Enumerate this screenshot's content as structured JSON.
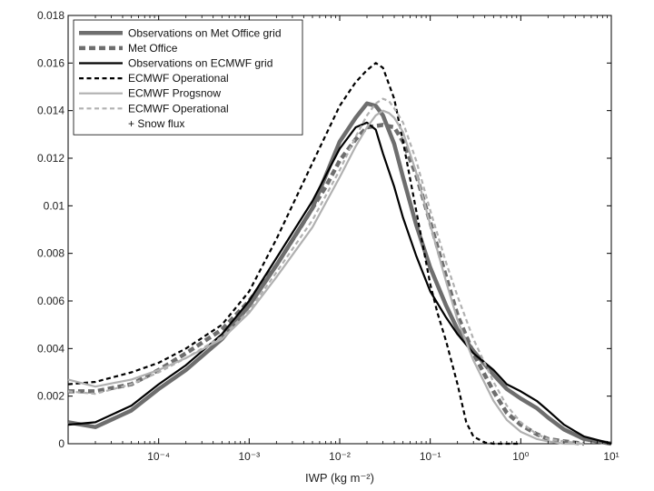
{
  "chart_data": {
    "type": "line",
    "title": "",
    "xlabel": "IWP (kg m⁻²)",
    "ylabel": "",
    "x_scale": "log",
    "xlim": [
      1e-05,
      10
    ],
    "ylim": [
      0,
      0.018
    ],
    "x_ticks": [
      {
        "value": 0.0001,
        "label": "10⁻⁴"
      },
      {
        "value": 0.001,
        "label": "10⁻³"
      },
      {
        "value": 0.01,
        "label": "10⁻²"
      },
      {
        "value": 0.1,
        "label": "10⁻¹"
      },
      {
        "value": 1,
        "label": "10⁰"
      },
      {
        "value": 10,
        "label": "10¹"
      }
    ],
    "y_ticks": [
      {
        "value": 0,
        "label": "0"
      },
      {
        "value": 0.002,
        "label": "0.002"
      },
      {
        "value": 0.004,
        "label": "0.004"
      },
      {
        "value": 0.006,
        "label": "0.006"
      },
      {
        "value": 0.008,
        "label": "0.008"
      },
      {
        "value": 0.01,
        "label": "0.01"
      },
      {
        "value": 0.012,
        "label": "0.012"
      },
      {
        "value": 0.014,
        "label": "0.014"
      },
      {
        "value": 0.016,
        "label": "0.016"
      },
      {
        "value": 0.018,
        "label": "0.018"
      }
    ],
    "legend_position": "top-left",
    "series": [
      {
        "name": "Observations on Met Office grid",
        "color": "#6e6e6e",
        "style": "solid",
        "weight": "thick",
        "x": [
          1e-05,
          2e-05,
          5e-05,
          0.0001,
          0.0002,
          0.0005,
          0.001,
          0.002,
          0.005,
          0.01,
          0.015,
          0.02,
          0.025,
          0.03,
          0.04,
          0.05,
          0.07,
          0.1,
          0.15,
          0.2,
          0.3,
          0.5,
          0.7,
          1,
          1.5,
          2,
          3,
          5,
          10
        ],
        "values": [
          0.0009,
          0.0007,
          0.0014,
          0.0023,
          0.0031,
          0.0044,
          0.0058,
          0.0075,
          0.0099,
          0.0127,
          0.0137,
          0.0143,
          0.0142,
          0.0138,
          0.0126,
          0.0112,
          0.0092,
          0.0074,
          0.0058,
          0.0048,
          0.0039,
          0.0029,
          0.0023,
          0.0019,
          0.0015,
          0.0011,
          0.0006,
          0.0002,
          0.0
        ]
      },
      {
        "name": "Met Office",
        "color": "#6e6e6e",
        "style": "dash",
        "weight": "thick",
        "x": [
          1e-05,
          2e-05,
          5e-05,
          0.0001,
          0.0002,
          0.0005,
          0.001,
          0.002,
          0.004,
          0.007,
          0.01,
          0.015,
          0.02,
          0.03,
          0.04,
          0.05,
          0.07,
          0.1,
          0.15,
          0.2,
          0.3,
          0.5,
          0.7,
          1,
          1.5,
          2,
          3,
          5
        ],
        "values": [
          0.0022,
          0.0022,
          0.0025,
          0.0031,
          0.0038,
          0.0048,
          0.006,
          0.0075,
          0.0093,
          0.0108,
          0.0119,
          0.0128,
          0.0133,
          0.0134,
          0.0133,
          0.0127,
          0.0113,
          0.0093,
          0.007,
          0.0054,
          0.0038,
          0.0022,
          0.0013,
          0.0008,
          0.0004,
          0.0002,
          0.0001,
          0.0
        ]
      },
      {
        "name": "Observations on ECMWF grid",
        "color": "#000000",
        "style": "solid",
        "weight": "medium",
        "x": [
          1e-05,
          2e-05,
          5e-05,
          0.0001,
          0.0002,
          0.0005,
          0.001,
          0.002,
          0.005,
          0.01,
          0.015,
          0.02,
          0.025,
          0.03,
          0.04,
          0.05,
          0.07,
          0.1,
          0.15,
          0.2,
          0.3,
          0.5,
          0.7,
          1,
          1.5,
          2,
          3,
          5,
          10
        ],
        "values": [
          0.0008,
          0.0009,
          0.0016,
          0.0025,
          0.0033,
          0.0046,
          0.006,
          0.0078,
          0.0102,
          0.0124,
          0.0133,
          0.0135,
          0.0132,
          0.0122,
          0.0108,
          0.0095,
          0.0079,
          0.0064,
          0.0053,
          0.0046,
          0.0038,
          0.0031,
          0.0025,
          0.0022,
          0.0018,
          0.0014,
          0.0008,
          0.0003,
          0.0
        ]
      },
      {
        "name": "ECMWF Operational",
        "color": "#000000",
        "style": "dash",
        "weight": "medium",
        "x": [
          1e-05,
          2e-05,
          5e-05,
          0.0001,
          0.0002,
          0.0005,
          0.001,
          0.002,
          0.005,
          0.01,
          0.015,
          0.02,
          0.025,
          0.03,
          0.04,
          0.05,
          0.07,
          0.1,
          0.12,
          0.15,
          0.2,
          0.25,
          0.3,
          0.4,
          0.5,
          0.7,
          1
        ],
        "values": [
          0.0025,
          0.0026,
          0.003,
          0.0034,
          0.004,
          0.005,
          0.0064,
          0.0086,
          0.0118,
          0.0142,
          0.0152,
          0.0157,
          0.016,
          0.0158,
          0.0145,
          0.0127,
          0.0098,
          0.0067,
          0.0055,
          0.0043,
          0.0025,
          0.0009,
          0.0003,
          5e-05,
          0.0,
          0.0,
          0.0
        ]
      },
      {
        "name": "ECMWF Progsnow",
        "color": "#b0b0b0",
        "style": "solid",
        "weight": "medium",
        "x": [
          1e-05,
          2e-05,
          5e-05,
          0.0001,
          0.0002,
          0.0005,
          0.001,
          0.002,
          0.005,
          0.01,
          0.015,
          0.02,
          0.025,
          0.03,
          0.035,
          0.04,
          0.05,
          0.07,
          0.1,
          0.15,
          0.2,
          0.3,
          0.5,
          0.7,
          1,
          1.5,
          2,
          3,
          5
        ],
        "values": [
          0.0027,
          0.0024,
          0.0027,
          0.0031,
          0.0036,
          0.0044,
          0.0055,
          0.007,
          0.0091,
          0.0112,
          0.0125,
          0.0133,
          0.0138,
          0.014,
          0.0139,
          0.0137,
          0.0131,
          0.0114,
          0.0092,
          0.0068,
          0.0052,
          0.0035,
          0.0018,
          0.001,
          0.0005,
          0.0002,
          0.0001,
          0.0,
          0.0
        ]
      },
      {
        "name": "ECMWF Operational + Snow flux",
        "color": "#b0b0b0",
        "style": "dash",
        "weight": "medium",
        "x": [
          1e-05,
          2e-05,
          5e-05,
          0.0001,
          0.0002,
          0.0005,
          0.001,
          0.002,
          0.005,
          0.01,
          0.015,
          0.02,
          0.025,
          0.03,
          0.035,
          0.04,
          0.05,
          0.07,
          0.1,
          0.15,
          0.2,
          0.3,
          0.5,
          0.7,
          1,
          1.5,
          2,
          3,
          5
        ],
        "values": [
          0.0022,
          0.0021,
          0.0025,
          0.003,
          0.0036,
          0.0045,
          0.0056,
          0.0072,
          0.0094,
          0.0115,
          0.0129,
          0.0138,
          0.0143,
          0.0145,
          0.0144,
          0.0141,
          0.0135,
          0.0119,
          0.0098,
          0.0076,
          0.0062,
          0.0044,
          0.0026,
          0.0016,
          0.0009,
          0.0004,
          0.0002,
          0.0001,
          0.0
        ]
      }
    ],
    "legend": [
      {
        "lines": [
          "Observations on Met Office grid"
        ]
      },
      {
        "lines": [
          "Met Office"
        ]
      },
      {
        "lines": [
          "Observations on ECMWF grid"
        ]
      },
      {
        "lines": [
          "ECMWF Operational"
        ]
      },
      {
        "lines": [
          "ECMWF Progsnow"
        ]
      },
      {
        "lines": [
          "ECMWF Operational",
          "+ Snow flux"
        ]
      }
    ]
  }
}
